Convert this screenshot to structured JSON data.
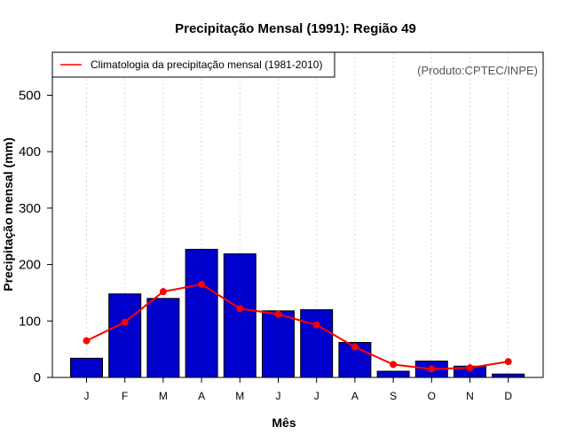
{
  "chart_data": {
    "type": "bar",
    "title": "Precipitação Mensal (1991): Região 49",
    "xlabel": "Mês",
    "ylabel": "Precipitação mensal (mm)",
    "categories": [
      "J",
      "F",
      "M",
      "A",
      "M",
      "J",
      "J",
      "A",
      "S",
      "O",
      "N",
      "D"
    ],
    "ylim": [
      0,
      560
    ],
    "yticks": [
      0,
      100,
      200,
      300,
      400,
      500
    ],
    "grid": "vertical-dotted",
    "series": [
      {
        "name": "Precipitação mensal (1991)",
        "type": "bar",
        "color": "#0000cc",
        "values": [
          34,
          148,
          140,
          227,
          219,
          118,
          120,
          62,
          11,
          29,
          20,
          6
        ]
      },
      {
        "name": "Climatologia da precipitação mensal (1981-2010)",
        "type": "line",
        "color": "#ff0000",
        "values": [
          65,
          98,
          152,
          165,
          122,
          112,
          93,
          54,
          23,
          15,
          17,
          28
        ]
      }
    ],
    "legend": {
      "position": "top-left",
      "entries": [
        "Climatologia da precipitação mensal (1981-2010)"
      ]
    },
    "annotation": "(Produto:CPTEC/INPE)"
  }
}
